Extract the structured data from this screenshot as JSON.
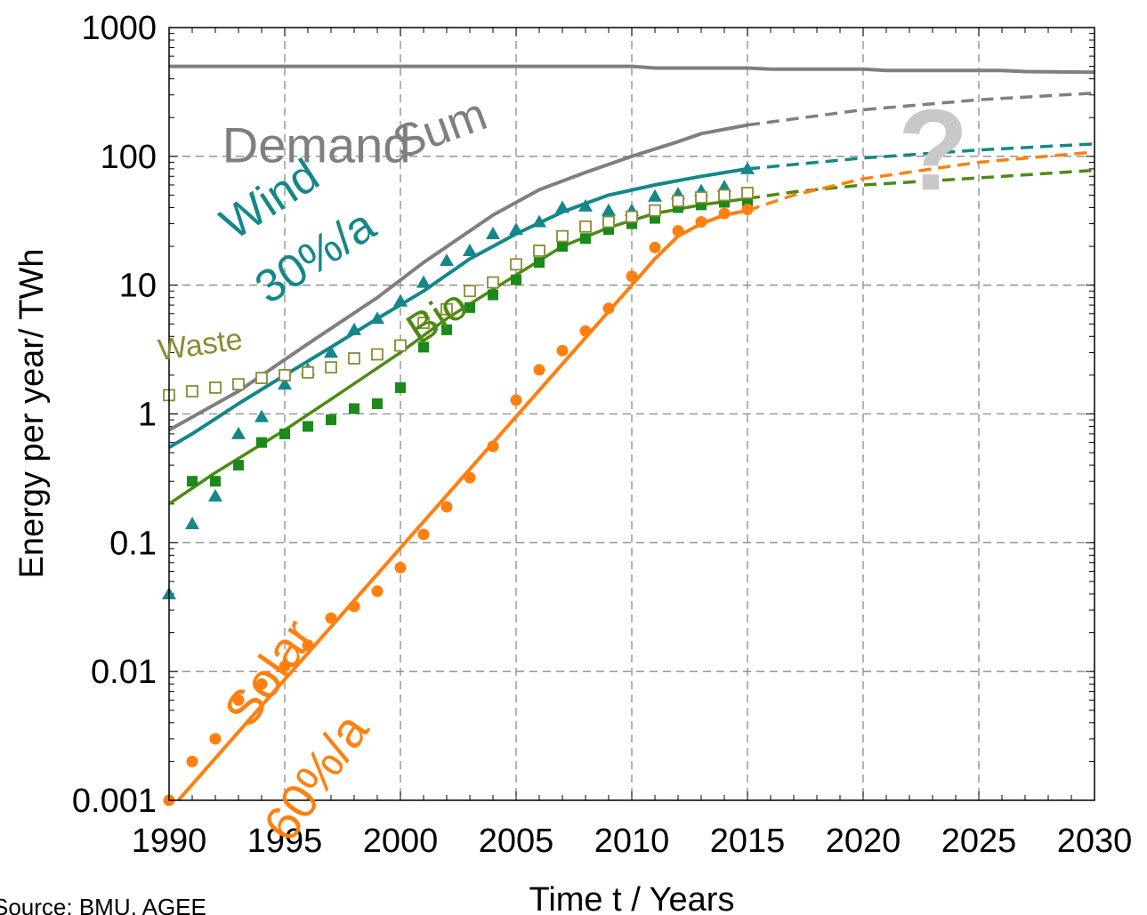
{
  "source_text": "Source: BMU, AGEE",
  "chart_data": {
    "type": "line",
    "xlabel": "Time t / Years",
    "ylabel": "Energy per year/ TWh",
    "xlim": [
      1990,
      2030
    ],
    "ylim": [
      0.001,
      1000
    ],
    "yscale": "log",
    "grid": true,
    "x_ticks": [
      "1990",
      "1995",
      "2000",
      "2005",
      "2010",
      "2015",
      "2020",
      "2025",
      "2030"
    ],
    "y_ticks": [
      "0.001",
      "0.01",
      "0.1",
      "1",
      "10",
      "100",
      "1000"
    ],
    "colors": {
      "demand": "#7f7f7f",
      "sum": "#7f7f7f",
      "wind": "#15878a",
      "bio": "#4d8a12",
      "bio_marker": "#1a8a1a",
      "waste": "#8a8a33",
      "solar": "#ff8010",
      "question": "#c8c8c8"
    },
    "lines": [
      {
        "id": "demand",
        "color_key": "demand",
        "width": 4,
        "x": [
          1990,
          2010,
          2011,
          2015,
          2016,
          2020,
          2021,
          2026,
          2027,
          2030
        ],
        "y": [
          500,
          500,
          485,
          485,
          475,
          475,
          465,
          465,
          455,
          450
        ]
      },
      {
        "id": "sum",
        "color_key": "sum",
        "width": 4,
        "x": [
          1990,
          1993,
          1996,
          1999,
          2001,
          2004,
          2006,
          2008,
          2010,
          2012,
          2013,
          2015
        ],
        "y": [
          0.75,
          1.5,
          3.5,
          8,
          15,
          35,
          55,
          75,
          100,
          130,
          150,
          175
        ]
      },
      {
        "id": "sum-projection",
        "color_key": "sum",
        "width": 3.5,
        "dashed": true,
        "x": [
          2015,
          2020,
          2025,
          2030
        ],
        "y": [
          175,
          230,
          275,
          310
        ]
      },
      {
        "id": "wind",
        "color_key": "wind",
        "width": 4,
        "x": [
          1990,
          1991,
          1993,
          1995,
          1997,
          1999,
          2001,
          2003,
          2005,
          2007,
          2009,
          2011,
          2013,
          2015
        ],
        "y": [
          0.55,
          0.7,
          1.2,
          2,
          3.3,
          5.5,
          9,
          16,
          25,
          37,
          50,
          60,
          70,
          80
        ]
      },
      {
        "id": "wind-projection",
        "color_key": "wind",
        "width": 3.5,
        "dashed": true,
        "x": [
          2015,
          2020,
          2025,
          2030
        ],
        "y": [
          80,
          97,
          112,
          125
        ]
      },
      {
        "id": "bio",
        "color_key": "bio",
        "width": 3.5,
        "x": [
          1990,
          1992,
          1995,
          1997,
          2000,
          2002,
          2005,
          2007,
          2009,
          2011,
          2013,
          2015
        ],
        "y": [
          0.2,
          0.35,
          0.75,
          1.3,
          3,
          5.5,
          12,
          20,
          28,
          36,
          42,
          47
        ]
      },
      {
        "id": "bio-projection",
        "color_key": "bio",
        "width": 3.5,
        "dashed": true,
        "x": [
          2015,
          2017,
          2020,
          2025,
          2030
        ],
        "y": [
          47,
          53,
          60,
          68,
          78
        ]
      },
      {
        "id": "solar",
        "color_key": "solar",
        "width": 4,
        "x": [
          1990.4,
          2010,
          2011,
          2012,
          2013,
          2014,
          2015
        ],
        "y": [
          0.001,
          10,
          16,
          24,
          30,
          35,
          38
        ]
      },
      {
        "id": "solar-projection",
        "color_key": "solar",
        "width": 3.5,
        "dashed": true,
        "x": [
          2015,
          2017,
          2020,
          2025,
          2030
        ],
        "y": [
          38,
          50,
          67,
          90,
          108
        ]
      }
    ],
    "markers": [
      {
        "id": "wind-data",
        "shape": "triangle",
        "color_key": "wind",
        "x": [
          1990,
          1991,
          1992,
          1993,
          1994,
          1995,
          1996,
          1997,
          1998,
          1999,
          2000,
          2001,
          2002,
          2003,
          2004,
          2005,
          2006,
          2007,
          2008,
          2009,
          2010,
          2011,
          2012,
          2013,
          2014,
          2015
        ],
        "y": [
          0.04,
          0.14,
          0.23,
          0.7,
          0.95,
          1.7,
          2.2,
          3,
          4.5,
          5.5,
          7.5,
          10.5,
          15.5,
          18.5,
          25,
          27,
          31,
          40,
          41,
          38,
          38,
          49,
          51,
          54,
          58,
          80
        ]
      },
      {
        "id": "bio-data",
        "shape": "square-filled",
        "color_key": "bio_marker",
        "x": [
          1991,
          1992,
          1993,
          1994,
          1995,
          1996,
          1997,
          1998,
          1999,
          2000,
          2001,
          2002,
          2003,
          2004,
          2005,
          2006,
          2007,
          2008,
          2009,
          2010,
          2011,
          2012,
          2013,
          2014,
          2015
        ],
        "y": [
          0.3,
          0.3,
          0.4,
          0.6,
          0.7,
          0.8,
          0.9,
          1.1,
          1.2,
          1.6,
          3.3,
          4.5,
          6.7,
          8.4,
          11,
          15,
          20,
          23,
          27,
          30,
          33,
          40,
          42,
          44,
          45
        ]
      },
      {
        "id": "waste-data",
        "shape": "square-open",
        "color_key": "waste",
        "x": [
          1990,
          1991,
          1992,
          1993,
          1994,
          1995,
          1996,
          1997,
          1998,
          1999,
          2000,
          2001,
          2002,
          2003,
          2004,
          2005,
          2006,
          2007,
          2008,
          2009,
          2010,
          2011,
          2012,
          2013,
          2014,
          2015
        ],
        "y": [
          1.4,
          1.5,
          1.6,
          1.7,
          1.9,
          2,
          2.1,
          2.3,
          2.7,
          2.9,
          3.4,
          5.1,
          6.5,
          9,
          10.5,
          14.5,
          18.5,
          24,
          28.5,
          31,
          34,
          38,
          45,
          48,
          50,
          52
        ]
      },
      {
        "id": "solar-data",
        "shape": "circle",
        "color_key": "solar",
        "x": [
          1990,
          1991,
          1992,
          1993,
          1994,
          1995,
          1996,
          1997,
          1998,
          1999,
          2000,
          2001,
          2002,
          2003,
          2004,
          2005,
          2006,
          2007,
          2008,
          2009,
          2010,
          2011,
          2012,
          2013,
          2014,
          2015
        ],
        "y": [
          0.001,
          0.002,
          0.003,
          0.006,
          0.008,
          0.011,
          0.016,
          0.026,
          0.032,
          0.042,
          0.064,
          0.116,
          0.19,
          0.32,
          0.56,
          1.28,
          2.2,
          3.1,
          4.4,
          6.6,
          11.7,
          19.6,
          26.4,
          31,
          36,
          38.7
        ]
      }
    ],
    "annotations": [
      {
        "id": "demand-label",
        "text": "Demand",
        "x": 1992.3,
        "y": 90,
        "color_key": "demand",
        "size": 56,
        "rotate": 0
      },
      {
        "id": "sum-label",
        "text": "Sum",
        "x": 2000,
        "y": 95,
        "color_key": "sum",
        "size": 52,
        "rotate": -20
      },
      {
        "id": "wind-label",
        "text": "Wind",
        "x": 1992.8,
        "y": 22,
        "color_key": "wind",
        "size": 52,
        "rotate": -33
      },
      {
        "id": "wind-rate",
        "text": "30%/a",
        "x": 1994.3,
        "y": 7,
        "color_key": "wind",
        "size": 52,
        "rotate": -33
      },
      {
        "id": "bio-label",
        "text": "Bio",
        "x": 2000.8,
        "y": 3.4,
        "color_key": "bio",
        "size": 48,
        "rotate": -33
      },
      {
        "id": "waste-label",
        "text": "Waste",
        "x": 1989.6,
        "y": 2.6,
        "color_key": "waste",
        "size": 34,
        "rotate": -8
      },
      {
        "id": "solar-label",
        "text": "Solar",
        "x": 1993.5,
        "y": 0.0035,
        "color_key": "solar",
        "size": 56,
        "rotate": -55
      },
      {
        "id": "solar-rate",
        "text": "60%/a",
        "x": 1995.2,
        "y": 0.00045,
        "color_key": "solar",
        "size": 56,
        "rotate": -55
      },
      {
        "id": "question-mark",
        "text": "?",
        "x": 2021.5,
        "y": 55,
        "color_key": "question",
        "size": 130,
        "rotate": 0
      }
    ]
  }
}
